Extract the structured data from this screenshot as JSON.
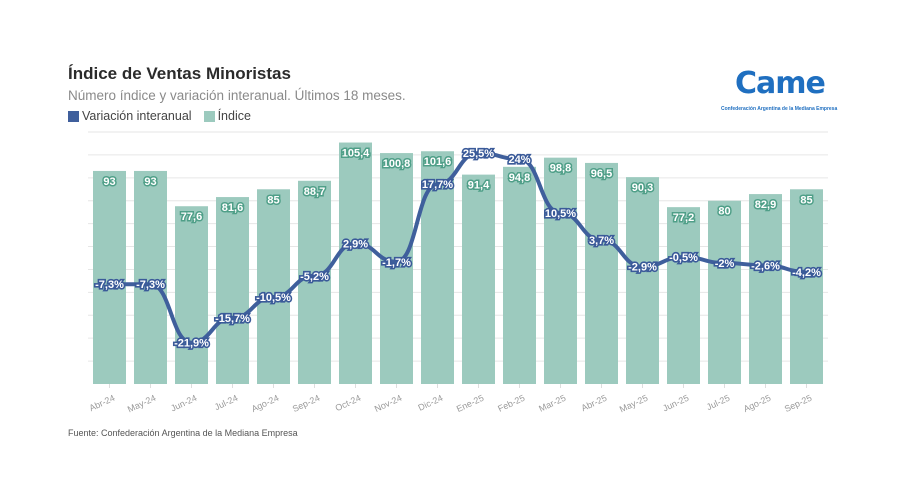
{
  "header": {
    "title": "Índice de Ventas Minoristas",
    "subtitle": "Número índice y variación interanual. Últimos 18 meses."
  },
  "logo": {
    "wordmark": "Came",
    "tagline": "Confederación Argentina de la Mediana Empresa"
  },
  "source": "Fuente: Confederación Argentina de la Mediana Empresa",
  "colors": {
    "bar": "#9ccabe",
    "line": "#3f5f9c",
    "grid": "#e6e6e6"
  },
  "chart_data": {
    "type": "bar",
    "title": "Índice de Ventas Minoristas",
    "subtitle": "Número índice y variación interanual. Últimos 18 meses.",
    "xlabel": "",
    "ylabel": "",
    "grid": true,
    "legend_position": "top-left",
    "legend": [
      "Variación interanual",
      "Índice"
    ],
    "categories": [
      "Abr-24",
      "May-24",
      "Jun-24",
      "Jul-24",
      "Ago-24",
      "Sep-24",
      "Oct-24",
      "Nov-24",
      "Dic-24",
      "Ene-25",
      "Feb-25",
      "Mar-25",
      "Abr-25",
      "May-25",
      "Jun-25",
      "Jul-25",
      "Ago-25",
      "Sep-25"
    ],
    "series": [
      {
        "name": "Índice",
        "type": "bar",
        "values": [
          93,
          93,
          77.6,
          81.6,
          85,
          88.7,
          105.4,
          100.8,
          101.6,
          91.4,
          94.8,
          98.8,
          96.5,
          90.3,
          77.2,
          80,
          82.9,
          85
        ],
        "labels": [
          "93",
          "93",
          "77,6",
          "81,6",
          "85",
          "88,7",
          "105,4",
          "100,8",
          "101,6",
          "91,4",
          "94,8",
          "98,8",
          "96,5",
          "90,3",
          "77,2",
          "80",
          "82,9",
          "85"
        ]
      },
      {
        "name": "Variación interanual",
        "type": "line",
        "unit": "%",
        "values": [
          -7.3,
          -7.3,
          -21.9,
          -15.7,
          -10.5,
          -5.2,
          2.9,
          -1.7,
          17.7,
          25.5,
          24,
          10.5,
          3.7,
          -2.9,
          -0.5,
          -2,
          -2.6,
          -4.2
        ],
        "labels": [
          "-7,3%",
          "-7,3%",
          "-21,9%",
          "-15,7%",
          "-10,5%",
          "-5,2%",
          "2,9%",
          "-1,7%",
          "17,7%",
          "25,5%",
          "24%",
          "10,5%",
          "3,7%",
          "-2,9%",
          "-0,5%",
          "-2%",
          "-2,6%",
          "-4,2%"
        ]
      }
    ],
    "ylim_bar": [
      0,
      110
    ],
    "ylim_line": [
      -32,
      32
    ]
  }
}
